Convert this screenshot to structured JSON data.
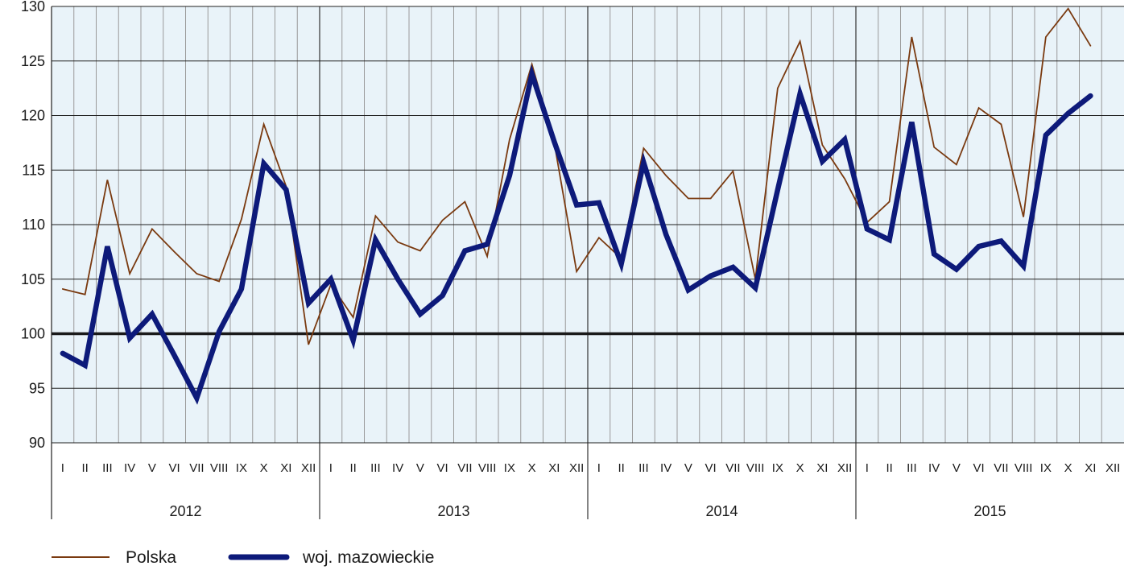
{
  "chart_data": {
    "type": "line",
    "title": "",
    "xlabel": "",
    "ylabel": "",
    "ylim": [
      90,
      130
    ],
    "yticks": [
      90,
      95,
      100,
      105,
      110,
      115,
      120,
      125,
      130
    ],
    "reference_line": 100,
    "grid": true,
    "legend_position": "bottom-left",
    "month_labels": [
      "I",
      "II",
      "III",
      "IV",
      "V",
      "VI",
      "VII",
      "VIII",
      "IX",
      "X",
      "XI",
      "XII"
    ],
    "years": [
      "2012",
      "2013",
      "2014",
      "2015"
    ],
    "series": [
      {
        "name": "Polska",
        "color": "#7a3a10",
        "values": [
          104.1,
          103.6,
          114.1,
          105.5,
          109.6,
          107.5,
          105.5,
          104.8,
          110.5,
          119.2,
          113.5,
          99.0,
          104.5,
          101.5,
          110.8,
          108.4,
          107.6,
          110.4,
          112.1,
          107.1,
          117.8,
          124.7,
          117.5,
          105.7,
          108.8,
          106.9,
          117.0,
          114.5,
          112.4,
          112.4,
          114.9,
          105.0,
          122.5,
          126.8,
          117.3,
          114.2,
          110.2,
          112.1,
          127.2,
          117.1,
          115.5,
          120.7,
          119.2,
          110.7,
          127.2,
          129.8,
          126.4
        ]
      },
      {
        "name": "woj. mazowieckie",
        "color": "#0d1a7a",
        "values": [
          98.2,
          97.1,
          108.0,
          99.6,
          101.8,
          98.0,
          94.1,
          100.2,
          104.1,
          115.6,
          113.2,
          102.8,
          105.0,
          99.4,
          108.6,
          105.0,
          101.8,
          103.5,
          107.6,
          108.2,
          114.5,
          123.8,
          117.6,
          111.8,
          112.0,
          106.4,
          115.7,
          109.1,
          104.0,
          105.3,
          106.1,
          104.2,
          113.2,
          122.0,
          115.8,
          117.8,
          109.6,
          108.6,
          119.4,
          107.3,
          105.9,
          108.0,
          108.5,
          106.2,
          118.2,
          120.2,
          121.8
        ]
      }
    ]
  }
}
